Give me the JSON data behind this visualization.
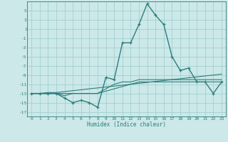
{
  "x": [
    0,
    1,
    2,
    3,
    4,
    5,
    6,
    7,
    8,
    9,
    10,
    11,
    12,
    13,
    14,
    15,
    16,
    17,
    18,
    19,
    20,
    21,
    22,
    23
  ],
  "main_line": [
    -13,
    -13,
    -13,
    -13,
    -14,
    -15,
    -14.5,
    -15,
    -16,
    -9.5,
    -10,
    -2,
    -2,
    2,
    6.5,
    4,
    2,
    -5,
    -8,
    -7.5,
    -10.5,
    -10.5,
    -13,
    -10.5
  ],
  "line2": [
    -13,
    -13,
    -13,
    -13,
    -13.5,
    -13,
    -13,
    -13,
    -13,
    -12,
    -11,
    -10.5,
    -10.5,
    -10,
    -10,
    -10,
    -10,
    -10,
    -10,
    -10,
    -10,
    -10,
    -10,
    -10
  ],
  "line3": [
    -13,
    -13,
    -12.8,
    -12.8,
    -12.6,
    -12.4,
    -12.2,
    -12.0,
    -11.8,
    -11.6,
    -11.4,
    -11.2,
    -11.0,
    -10.8,
    -10.6,
    -10.4,
    -10.2,
    -10.0,
    -9.8,
    -9.6,
    -9.4,
    -9.2,
    -9.0,
    -8.8
  ],
  "line4": [
    -13,
    -13,
    -13,
    -13,
    -13,
    -13,
    -13,
    -13,
    -13,
    -12.5,
    -12,
    -11.5,
    -11,
    -10.5,
    -10.5,
    -10.5,
    -10.5,
    -10.5,
    -10.5,
    -10.5,
    -10.5,
    -10.5,
    -10.5,
    -10.5
  ],
  "bg_color": "#cce8e8",
  "grid_color": "#99cccc",
  "line_color": "#2d7d7d",
  "xlabel": "Humidex (Indice chaleur)",
  "ylim": [
    -18,
    7
  ],
  "xlim": [
    -0.5,
    23.5
  ],
  "yticks": [
    5,
    3,
    1,
    -1,
    -3,
    -5,
    -7,
    -9,
    -11,
    -13,
    -15,
    -17
  ],
  "xticks": [
    0,
    1,
    2,
    3,
    4,
    5,
    6,
    7,
    8,
    9,
    10,
    11,
    12,
    13,
    14,
    15,
    16,
    17,
    18,
    19,
    20,
    21,
    22,
    23
  ]
}
